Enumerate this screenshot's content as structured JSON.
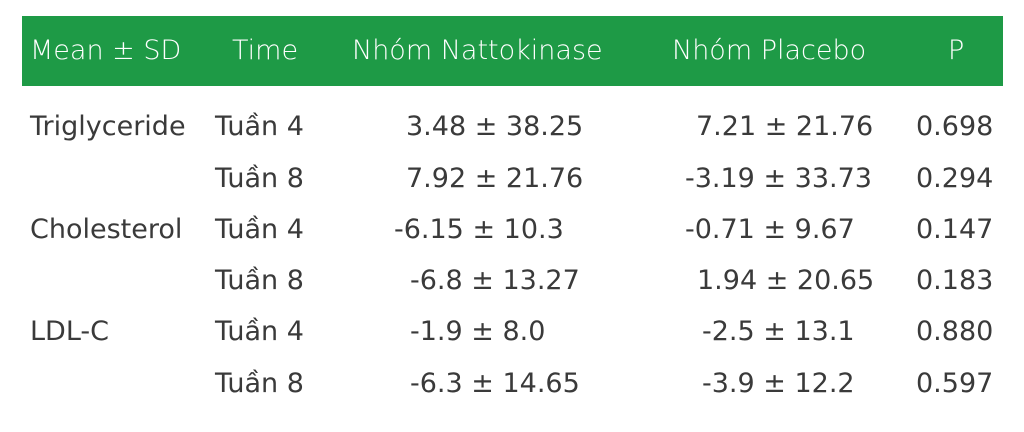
{
  "table": {
    "headers": [
      "Mean ± SD",
      "Time",
      "Nhóm Nattokinase",
      "Nhóm Placebo",
      "P"
    ],
    "rows": [
      {
        "group": "Triglyceride",
        "time": "Tuần 4",
        "natto": "3.48 ± 38.25",
        "placebo": "7.21 ± 21.76",
        "p": "0.698"
      },
      {
        "group": "",
        "time": "Tuần 8",
        "natto": "7.92 ± 21.76",
        "placebo": "-3.19 ± 33.73",
        "p": "0.294"
      },
      {
        "group": "Cholesterol",
        "time": "Tuần 4",
        "natto": "-6.15 ± 10.3",
        "placebo": "-0.71 ± 9.67",
        "p": "0.147"
      },
      {
        "group": "",
        "time": "Tuần 8",
        "natto": "-6.8 ± 13.27",
        "placebo": "1.94 ± 20.65",
        "p": "0.183"
      },
      {
        "group": "LDL-C",
        "time": "Tuần 4",
        "natto": "-1.9 ± 8.0",
        "placebo": "-2.5 ± 13.1",
        "p": "0.880"
      },
      {
        "group": "",
        "time": "Tuần 8",
        "natto": "-6.3 ± 14.65",
        "placebo": "-3.9 ± 12.2",
        "p": "0.597"
      }
    ]
  },
  "colors": {
    "header_bg": "#1e9a46",
    "header_text": "#ffffff",
    "body_text": "#3a3a3a"
  }
}
